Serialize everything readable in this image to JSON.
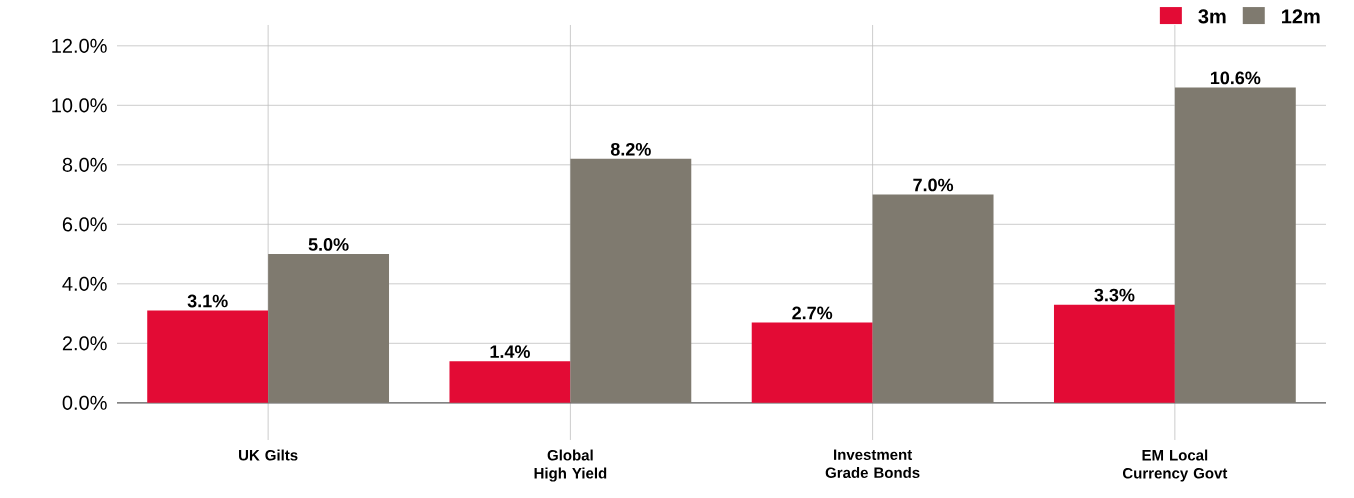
{
  "chart_data": {
    "type": "bar",
    "categories": [
      "UK Gilts",
      "Global High Yield",
      "Investment Grade Bonds",
      "EM Local Currency Govt"
    ],
    "series": [
      {
        "name": "3m",
        "color": "#e30b35",
        "values": [
          3.1,
          1.4,
          2.7,
          3.3
        ],
        "value_labels": [
          "3.1%",
          "1.4%",
          "2.7%",
          "3.3%"
        ]
      },
      {
        "name": "12m",
        "color": "#7f7a6f",
        "values": [
          5.0,
          8.2,
          7.0,
          10.6
        ],
        "value_labels": [
          "5.0%",
          "8.2%",
          "7.0%",
          "10.6%"
        ]
      }
    ],
    "ylim": [
      -1.25,
      12.7
    ],
    "yticks": [
      {
        "value": 0,
        "label": "0.0%"
      },
      {
        "value": 2,
        "label": "2.0%"
      },
      {
        "value": 4,
        "label": "4.0%"
      },
      {
        "value": 6,
        "label": "6.0%"
      },
      {
        "value": 8,
        "label": "8.0%"
      },
      {
        "value": 10,
        "label": "10.0%"
      },
      {
        "value": 12,
        "label": "12.0%"
      }
    ],
    "grid": true,
    "legend": "top right"
  }
}
